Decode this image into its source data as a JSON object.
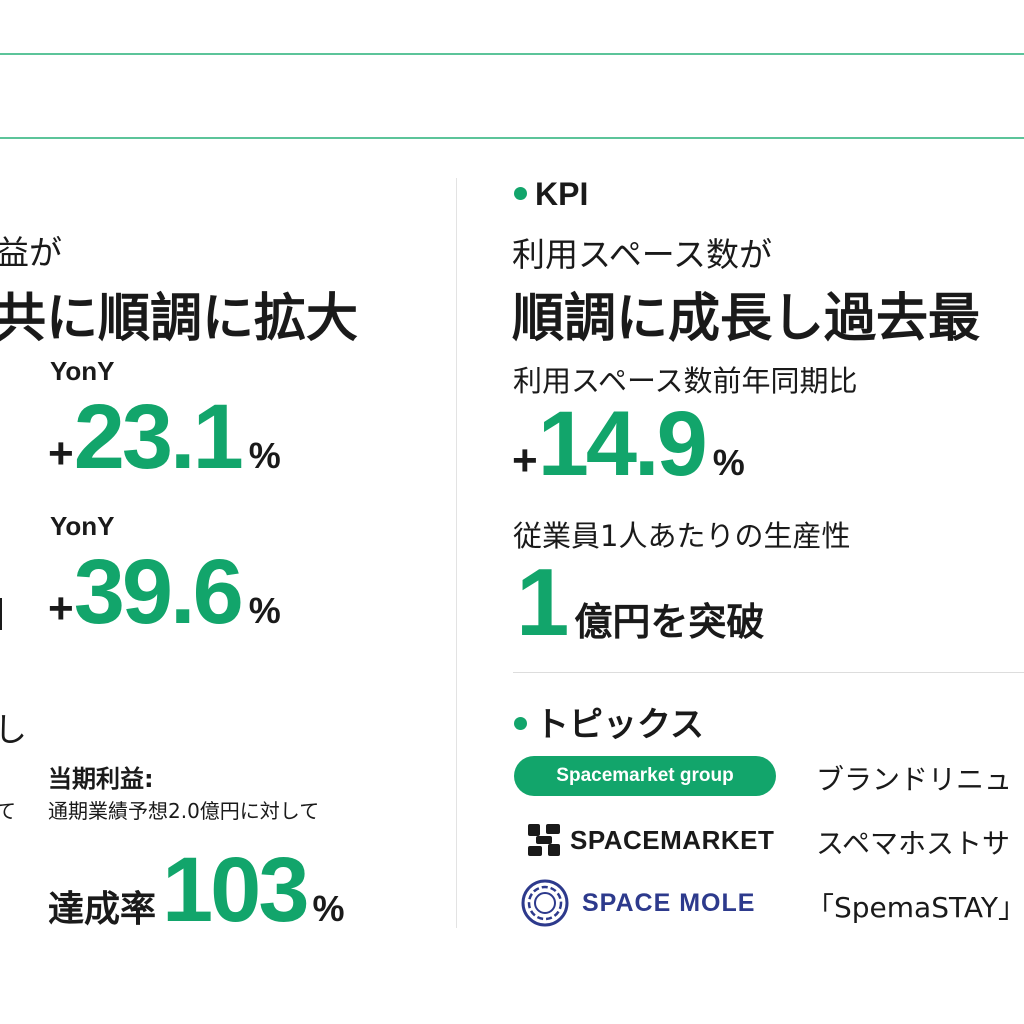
{
  "colors": {
    "accent": "#12a56b",
    "rule": "#5cc49a"
  },
  "left": {
    "heading_line1": "益が",
    "heading_line2": "共に順調に拡大",
    "metric1": {
      "label": "YonY",
      "sign": "+",
      "value": "23.1",
      "unit": "%"
    },
    "metric2": {
      "label": "YonY",
      "sign": "+",
      "value": "39.6",
      "unit": "%"
    },
    "partial_text": "し",
    "partial_text2": "て",
    "profit": {
      "label": "当期利益:",
      "note": "通期業績予想2.0億円に対して",
      "rate_label": "達成率",
      "rate_value": "103",
      "rate_unit": "%"
    }
  },
  "kpi": {
    "section_title": "KPI",
    "heading_line1": "利用スペース数が",
    "heading_line2": "順調に成長し過去最",
    "metric1": {
      "label": "利用スペース数前年同期比",
      "sign": "+",
      "value": "14.9",
      "unit": "%"
    },
    "metric2": {
      "label": "従業員1人あたりの生産性",
      "value": "1",
      "unit": "億円を突破"
    }
  },
  "topics": {
    "section_title": "トピックス",
    "items": [
      {
        "brand": "Spacemarket group",
        "brand_icon": "pill-badge",
        "text": "ブランドリニュ"
      },
      {
        "brand": "SPACEMARKET",
        "brand_icon": "spacemarket-logo-icon",
        "text": "スペマホストサ"
      },
      {
        "brand": "SPACE MOLE",
        "brand_icon": "space-mole-logo-icon",
        "text": "「SpemaSTAY」"
      }
    ]
  }
}
